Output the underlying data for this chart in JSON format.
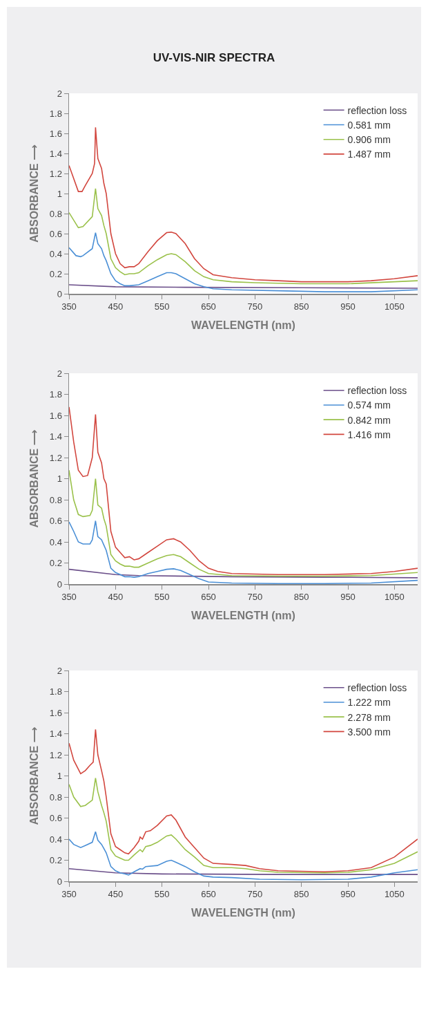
{
  "chart_data": [
    {
      "type": "line",
      "title": "UV-VIS-NIR SPECTRA",
      "xlabel": "WAVELENGTH (nm)",
      "ylabel": "ABSORBANCE ⟶",
      "xlim": [
        350,
        1100
      ],
      "xticks": [
        350,
        450,
        550,
        650,
        750,
        850,
        950,
        1050
      ],
      "ylim": [
        0,
        2
      ],
      "yticks": [
        0,
        0.2,
        0.4,
        0.6,
        0.8,
        1,
        1.2,
        1.4,
        1.6,
        1.8,
        2
      ],
      "grid": false,
      "legend": "top right",
      "line_style": "solid",
      "marker": "none",
      "series": [
        {
          "name": "reflection loss",
          "color": "#6b4f8a",
          "x": [
            350,
            450,
            600,
            850,
            1100
          ],
          "values": [
            0.09,
            0.07,
            0.065,
            0.06,
            0.055
          ]
        },
        {
          "name": "0.581 mm",
          "color": "#4a8fd6",
          "x": [
            350,
            365,
            375,
            380,
            400,
            407,
            412,
            420,
            425,
            430,
            440,
            450,
            460,
            470,
            480,
            500,
            520,
            540,
            560,
            570,
            580,
            600,
            620,
            640,
            660,
            700,
            800,
            900,
            1000,
            1100
          ],
          "values": [
            0.46,
            0.38,
            0.37,
            0.38,
            0.45,
            0.61,
            0.5,
            0.45,
            0.38,
            0.33,
            0.2,
            0.13,
            0.1,
            0.08,
            0.08,
            0.09,
            0.13,
            0.17,
            0.21,
            0.21,
            0.2,
            0.15,
            0.1,
            0.07,
            0.05,
            0.04,
            0.03,
            0.02,
            0.02,
            0.04
          ]
        },
        {
          "name": "0.906 mm",
          "color": "#9ac14a",
          "x": [
            350,
            370,
            380,
            400,
            407,
            412,
            420,
            425,
            430,
            440,
            450,
            460,
            470,
            480,
            490,
            500,
            520,
            540,
            560,
            570,
            580,
            600,
            620,
            640,
            660,
            700,
            750,
            850,
            950,
            1050,
            1100
          ],
          "values": [
            0.81,
            0.66,
            0.67,
            0.77,
            1.05,
            0.85,
            0.78,
            0.68,
            0.6,
            0.35,
            0.26,
            0.22,
            0.19,
            0.2,
            0.2,
            0.21,
            0.28,
            0.34,
            0.39,
            0.4,
            0.39,
            0.32,
            0.23,
            0.17,
            0.14,
            0.12,
            0.11,
            0.1,
            0.1,
            0.12,
            0.13
          ]
        },
        {
          "name": "1.487 mm",
          "color": "#d2463e",
          "x": [
            350,
            370,
            378,
            385,
            400,
            405,
            407,
            412,
            420,
            425,
            430,
            440,
            450,
            460,
            470,
            480,
            490,
            500,
            520,
            540,
            560,
            570,
            580,
            600,
            620,
            640,
            660,
            700,
            750,
            800,
            850,
            900,
            950,
            1000,
            1050,
            1100
          ],
          "values": [
            1.28,
            1.02,
            1.02,
            1.08,
            1.2,
            1.3,
            1.66,
            1.35,
            1.25,
            1.1,
            1.0,
            0.6,
            0.4,
            0.3,
            0.26,
            0.27,
            0.27,
            0.3,
            0.42,
            0.53,
            0.61,
            0.615,
            0.6,
            0.5,
            0.35,
            0.25,
            0.19,
            0.16,
            0.14,
            0.13,
            0.12,
            0.12,
            0.12,
            0.13,
            0.15,
            0.18
          ]
        }
      ]
    },
    {
      "type": "line",
      "xlabel": "WAVELENGTH (nm)",
      "ylabel": "ABSORBANCE ⟶",
      "xlim": [
        350,
        1100
      ],
      "xticks": [
        350,
        450,
        550,
        650,
        750,
        850,
        950,
        1050
      ],
      "ylim": [
        0,
        2
      ],
      "yticks": [
        0,
        0.2,
        0.4,
        0.6,
        0.8,
        1,
        1.2,
        1.4,
        1.6,
        1.8,
        2
      ],
      "grid": false,
      "legend": "top right",
      "line_style": "solid",
      "marker": "none",
      "series": [
        {
          "name": "reflection loss",
          "color": "#6b4f8a",
          "x": [
            350,
            450,
            500,
            700,
            900,
            1100
          ],
          "values": [
            0.14,
            0.09,
            0.08,
            0.07,
            0.065,
            0.06
          ]
        },
        {
          "name": "0.574 mm",
          "color": "#4a8fd6",
          "x": [
            350,
            360,
            370,
            380,
            395,
            400,
            407,
            412,
            420,
            425,
            430,
            440,
            450,
            460,
            470,
            480,
            490,
            500,
            520,
            540,
            560,
            575,
            590,
            610,
            630,
            650,
            700,
            800,
            900,
            1000,
            1100
          ],
          "values": [
            0.59,
            0.5,
            0.4,
            0.38,
            0.38,
            0.42,
            0.6,
            0.45,
            0.42,
            0.37,
            0.32,
            0.15,
            0.11,
            0.09,
            0.07,
            0.07,
            0.065,
            0.07,
            0.1,
            0.12,
            0.14,
            0.145,
            0.13,
            0.09,
            0.05,
            0.02,
            0.01,
            0.005,
            0.005,
            0.01,
            0.035
          ]
        },
        {
          "name": "0.842 mm",
          "color": "#9ac14a",
          "x": [
            350,
            360,
            370,
            380,
            395,
            400,
            407,
            412,
            420,
            425,
            430,
            440,
            450,
            460,
            470,
            480,
            490,
            500,
            520,
            540,
            560,
            575,
            590,
            610,
            630,
            650,
            700,
            800,
            900,
            1000,
            1100
          ],
          "values": [
            1.08,
            0.8,
            0.66,
            0.64,
            0.65,
            0.7,
            1.0,
            0.75,
            0.72,
            0.62,
            0.55,
            0.28,
            0.22,
            0.19,
            0.17,
            0.17,
            0.16,
            0.16,
            0.2,
            0.24,
            0.27,
            0.28,
            0.26,
            0.2,
            0.14,
            0.1,
            0.08,
            0.075,
            0.075,
            0.08,
            0.11
          ]
        },
        {
          "name": "1.416 mm",
          "color": "#d2463e",
          "x": [
            350,
            360,
            370,
            380,
            390,
            400,
            407,
            412,
            420,
            425,
            430,
            440,
            450,
            460,
            470,
            480,
            490,
            500,
            520,
            540,
            560,
            575,
            590,
            610,
            630,
            650,
            670,
            700,
            800,
            900,
            1000,
            1050,
            1100
          ],
          "values": [
            1.68,
            1.35,
            1.08,
            1.02,
            1.03,
            1.2,
            1.61,
            1.25,
            1.15,
            1.0,
            0.95,
            0.5,
            0.35,
            0.3,
            0.25,
            0.26,
            0.23,
            0.24,
            0.3,
            0.36,
            0.42,
            0.43,
            0.4,
            0.32,
            0.22,
            0.15,
            0.12,
            0.1,
            0.09,
            0.09,
            0.1,
            0.12,
            0.15
          ]
        }
      ]
    },
    {
      "type": "line",
      "xlabel": "WAVELENGTH (nm)",
      "ylabel": "ABSORBANCE ⟶",
      "xlim": [
        350,
        1100
      ],
      "xticks": [
        350,
        450,
        550,
        650,
        750,
        850,
        950,
        1050
      ],
      "ylim": [
        0,
        2
      ],
      "yticks": [
        0,
        0.2,
        0.4,
        0.6,
        0.8,
        1,
        1.2,
        1.4,
        1.6,
        1.8,
        2
      ],
      "grid": false,
      "legend": "top right",
      "line_style": "solid",
      "marker": "none",
      "series": [
        {
          "name": "reflection loss",
          "color": "#6b4f8a",
          "x": [
            350,
            450,
            550,
            800,
            1100
          ],
          "values": [
            0.12,
            0.08,
            0.07,
            0.065,
            0.065
          ]
        },
        {
          "name": "1.222 mm",
          "color": "#4a8fd6",
          "x": [
            350,
            360,
            375,
            385,
            400,
            407,
            412,
            420,
            425,
            430,
            440,
            450,
            460,
            470,
            478,
            490,
            503,
            508,
            515,
            540,
            560,
            570,
            580,
            600,
            620,
            640,
            660,
            700,
            760,
            850,
            950,
            1000,
            1050,
            1100
          ],
          "values": [
            0.4,
            0.35,
            0.32,
            0.34,
            0.37,
            0.47,
            0.39,
            0.35,
            0.31,
            0.27,
            0.14,
            0.1,
            0.08,
            0.07,
            0.06,
            0.09,
            0.12,
            0.115,
            0.14,
            0.15,
            0.19,
            0.2,
            0.18,
            0.14,
            0.09,
            0.05,
            0.04,
            0.035,
            0.02,
            0.015,
            0.02,
            0.04,
            0.08,
            0.11
          ]
        },
        {
          "name": "2.278 mm",
          "color": "#9ac14a",
          "x": [
            350,
            360,
            375,
            385,
            400,
            407,
            412,
            420,
            425,
            430,
            440,
            450,
            460,
            470,
            478,
            490,
            503,
            508,
            515,
            525,
            540,
            560,
            570,
            580,
            600,
            620,
            640,
            660,
            700,
            730,
            760,
            800,
            900,
            950,
            1000,
            1050,
            1100
          ],
          "values": [
            0.92,
            0.8,
            0.71,
            0.72,
            0.77,
            0.98,
            0.85,
            0.72,
            0.65,
            0.57,
            0.3,
            0.24,
            0.22,
            0.2,
            0.2,
            0.25,
            0.3,
            0.28,
            0.33,
            0.34,
            0.37,
            0.43,
            0.44,
            0.4,
            0.3,
            0.23,
            0.15,
            0.13,
            0.13,
            0.12,
            0.1,
            0.085,
            0.08,
            0.085,
            0.11,
            0.17,
            0.28
          ]
        },
        {
          "name": "3.500 mm",
          "color": "#d2463e",
          "x": [
            350,
            360,
            375,
            385,
            395,
            402,
            407,
            412,
            420,
            425,
            430,
            440,
            450,
            460,
            470,
            478,
            490,
            500,
            503,
            508,
            515,
            525,
            540,
            560,
            570,
            580,
            590,
            600,
            620,
            640,
            660,
            700,
            730,
            760,
            800,
            900,
            950,
            1000,
            1050,
            1100
          ],
          "values": [
            1.31,
            1.15,
            1.02,
            1.05,
            1.1,
            1.13,
            1.44,
            1.2,
            1.05,
            0.95,
            0.8,
            0.45,
            0.33,
            0.3,
            0.27,
            0.26,
            0.32,
            0.38,
            0.42,
            0.4,
            0.47,
            0.48,
            0.53,
            0.62,
            0.63,
            0.58,
            0.5,
            0.42,
            0.32,
            0.22,
            0.17,
            0.16,
            0.15,
            0.12,
            0.1,
            0.09,
            0.1,
            0.13,
            0.23,
            0.4
          ]
        }
      ]
    }
  ]
}
